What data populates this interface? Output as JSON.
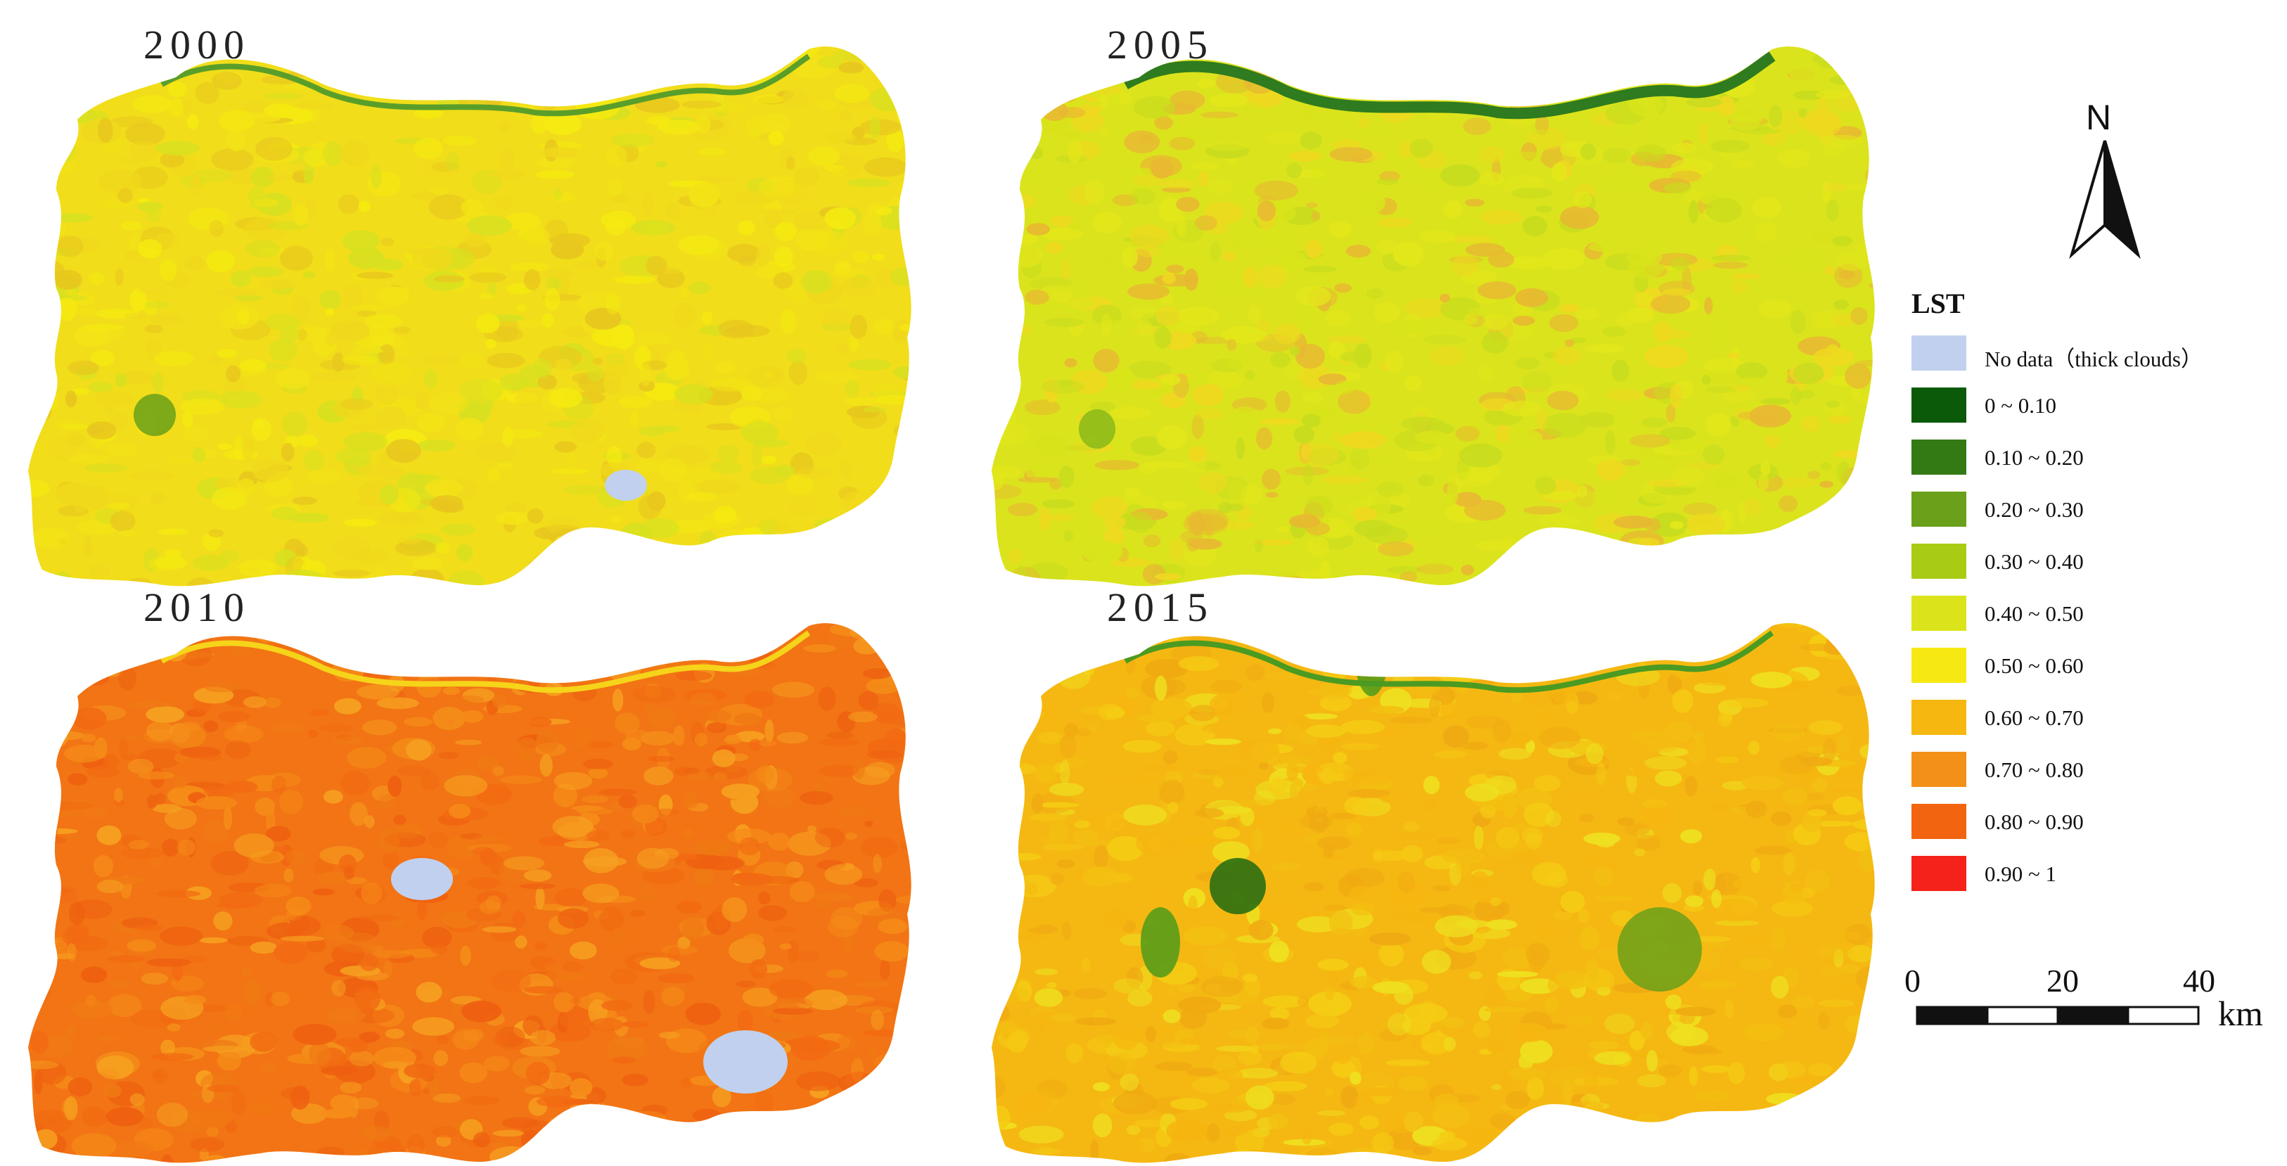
{
  "panels": [
    {
      "year": "2000",
      "palette": [
        "#f3e316",
        "#f0d81c",
        "#e8c61e",
        "#f5ea10",
        "#d8e020"
      ],
      "base": "#f1dd1a",
      "river": "#5a9e2a"
    },
    {
      "year": "2005",
      "palette": [
        "#d9e41a",
        "#e3e71a",
        "#c7dc1e",
        "#f0d820",
        "#e8b832"
      ],
      "base": "#dbe31c",
      "river": "#2f7b1f"
    },
    {
      "year": "2010",
      "palette": [
        "#f26a12",
        "#f07a14",
        "#f58c18",
        "#ee6010",
        "#f6a020"
      ],
      "base": "#f27414",
      "river": "#f5d41a"
    },
    {
      "year": "2015",
      "palette": [
        "#f6b610",
        "#f3c012",
        "#f0aa12",
        "#f5cc14",
        "#eee020"
      ],
      "base": "#f5b812",
      "river": "#4b9a22"
    }
  ],
  "legend": {
    "title": "LST",
    "items": [
      {
        "label": "No data（thick clouds）",
        "color": "#c1d0ee"
      },
      {
        "label": "0 ~ 0.10",
        "color": "#0a5a0a"
      },
      {
        "label": "0.10 ~ 0.20",
        "color": "#347a14"
      },
      {
        "label": "0.20 ~ 0.30",
        "color": "#6aa01a"
      },
      {
        "label": "0.30 ~ 0.40",
        "color": "#a8cc14"
      },
      {
        "label": "0.40 ~ 0.50",
        "color": "#dbe41a"
      },
      {
        "label": "0.50 ~ 0.60",
        "color": "#f6e812"
      },
      {
        "label": "0.60 ~ 0.70",
        "color": "#f6b810"
      },
      {
        "label": "0.70 ~ 0.80",
        "color": "#f39018"
      },
      {
        "label": "0.80 ~ 0.90",
        "color": "#f26410"
      },
      {
        "label": "0.90 ~ 1",
        "color": "#f4221a"
      }
    ]
  },
  "north": {
    "label": "N"
  },
  "scale": {
    "ticks": [
      "0",
      "20",
      "40"
    ],
    "unit": "km"
  }
}
